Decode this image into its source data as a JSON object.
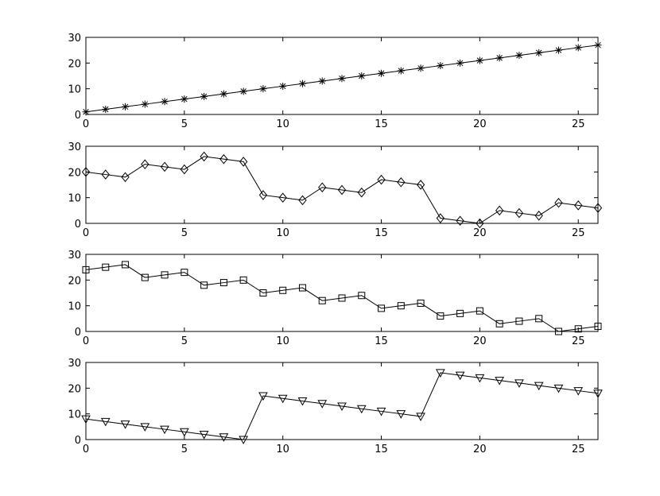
{
  "chart_data": [
    {
      "type": "line",
      "marker": "asterisk",
      "x": [
        0,
        1,
        2,
        3,
        4,
        5,
        6,
        7,
        8,
        9,
        10,
        11,
        12,
        13,
        14,
        15,
        16,
        17,
        18,
        19,
        20,
        21,
        22,
        23,
        24,
        25,
        26
      ],
      "series": [
        {
          "values": [
            1,
            2,
            3,
            4,
            5,
            6,
            7,
            8,
            9,
            10,
            11,
            12,
            13,
            14,
            15,
            16,
            17,
            18,
            19,
            20,
            21,
            22,
            23,
            24,
            25,
            26,
            27
          ]
        }
      ],
      "xlim": [
        0,
        26
      ],
      "ylim": [
        0,
        30
      ],
      "xticks": [
        "0",
        "5",
        "10",
        "15",
        "20",
        "25"
      ],
      "yticks": [
        "0",
        "10",
        "20",
        "30"
      ],
      "grid": false,
      "color": "#000000"
    },
    {
      "type": "line",
      "marker": "diamond",
      "x": [
        0,
        1,
        2,
        3,
        4,
        5,
        6,
        7,
        8,
        9,
        10,
        11,
        12,
        13,
        14,
        15,
        16,
        17,
        18,
        19,
        20,
        21,
        22,
        23,
        24,
        25,
        26
      ],
      "series": [
        {
          "values": [
            20,
            19,
            18,
            23,
            22,
            21,
            26,
            25,
            24,
            11,
            10,
            9,
            14,
            13,
            12,
            17,
            16,
            15,
            2,
            1,
            0,
            5,
            4,
            3,
            8,
            7,
            6
          ]
        }
      ],
      "xlim": [
        0,
        26
      ],
      "ylim": [
        0,
        30
      ],
      "xticks": [
        "0",
        "5",
        "10",
        "15",
        "20",
        "25"
      ],
      "yticks": [
        "0",
        "10",
        "20",
        "30"
      ],
      "grid": false,
      "color": "#000000"
    },
    {
      "type": "line",
      "marker": "square",
      "x": [
        0,
        1,
        2,
        3,
        4,
        5,
        6,
        7,
        8,
        9,
        10,
        11,
        12,
        13,
        14,
        15,
        16,
        17,
        18,
        19,
        20,
        21,
        22,
        23,
        24,
        25,
        26
      ],
      "series": [
        {
          "values": [
            24,
            25,
            26,
            21,
            22,
            23,
            18,
            19,
            20,
            15,
            16,
            17,
            12,
            13,
            14,
            9,
            10,
            11,
            6,
            7,
            8,
            3,
            4,
            5,
            0,
            1,
            2
          ]
        }
      ],
      "xlim": [
        0,
        26
      ],
      "ylim": [
        0,
        30
      ],
      "xticks": [
        "0",
        "5",
        "10",
        "15",
        "20",
        "25"
      ],
      "yticks": [
        "0",
        "10",
        "20",
        "30"
      ],
      "grid": false,
      "color": "#000000"
    },
    {
      "type": "line",
      "marker": "triangle-down",
      "x": [
        0,
        1,
        2,
        3,
        4,
        5,
        6,
        7,
        8,
        9,
        10,
        11,
        12,
        13,
        14,
        15,
        16,
        17,
        18,
        19,
        20,
        21,
        22,
        23,
        24,
        25,
        26
      ],
      "series": [
        {
          "values": [
            8,
            7,
            6,
            5,
            4,
            3,
            2,
            1,
            0,
            17,
            16,
            15,
            14,
            13,
            12,
            11,
            10,
            9,
            26,
            25,
            24,
            23,
            22,
            21,
            20,
            19,
            18
          ]
        }
      ],
      "xlim": [
        0,
        26
      ],
      "ylim": [
        0,
        30
      ],
      "xticks": [
        "0",
        "5",
        "10",
        "15",
        "20",
        "25"
      ],
      "yticks": [
        "0",
        "10",
        "20",
        "30"
      ],
      "grid": false,
      "color": "#000000"
    }
  ]
}
